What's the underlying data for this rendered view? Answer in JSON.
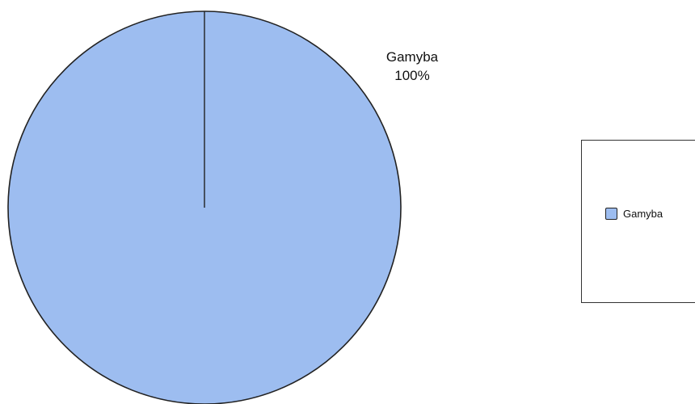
{
  "chart_data": {
    "type": "pie",
    "slices": [
      {
        "label": "Gamyba",
        "value": 100,
        "percent_label": "100%",
        "color": "#9dbdf0"
      }
    ],
    "legend": {
      "position": "right",
      "entries": [
        "Gamyba"
      ]
    },
    "outline_color": "#222222"
  }
}
